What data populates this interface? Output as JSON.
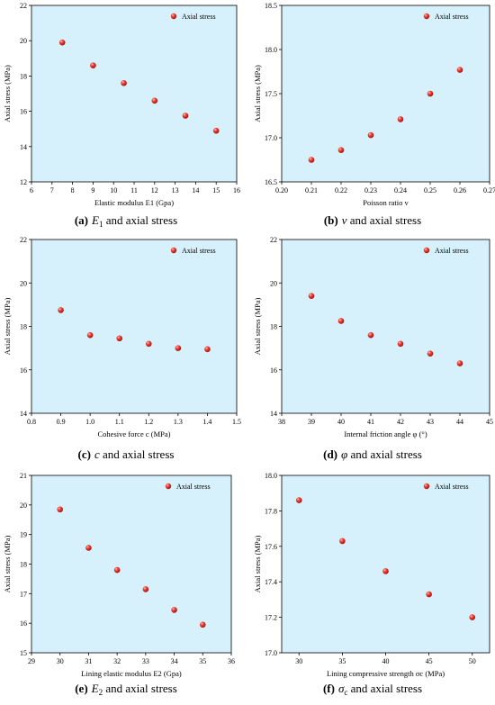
{
  "colors": {
    "plot_bg": "#d6f1fb",
    "marker": "#e8281e",
    "axis": "#000000"
  },
  "panels": [
    {
      "caption": {
        "letter": "(a)",
        "symbol": "E",
        "subscript": "1",
        "rest": " and axial stress"
      },
      "chart_data": {
        "type": "scatter",
        "xlabel": "Elastic modulus E1 (Gpa)",
        "ylabel": "Axial stress (MPa)",
        "xlim": [
          6,
          16
        ],
        "ylim": [
          12,
          22
        ],
        "xticks": [
          "6",
          "7",
          "8",
          "9",
          "10",
          "11",
          "12",
          "13",
          "14",
          "15",
          "16"
        ],
        "yticks": [
          "12",
          "14",
          "16",
          "18",
          "20",
          "22"
        ],
        "legend": "Axial stress",
        "legend_position": "top-right",
        "x": [
          7.5,
          9,
          10.5,
          12,
          13.5,
          15
        ],
        "y": [
          19.9,
          18.6,
          17.6,
          16.6,
          15.75,
          14.9
        ]
      }
    },
    {
      "caption": {
        "letter": "(b)",
        "symbol": "v",
        "subscript": "",
        "rest": " and axial stress"
      },
      "chart_data": {
        "type": "scatter",
        "xlabel": "Poisson ratio v",
        "ylabel": "Axial stress (MPa)",
        "xlim": [
          0.2,
          0.27
        ],
        "ylim": [
          16.5,
          18.5
        ],
        "xticks": [
          "0.20",
          "0.21",
          "0.22",
          "0.23",
          "0.24",
          "0.25",
          "0.26",
          "0.27"
        ],
        "yticks": [
          "16.5",
          "17.0",
          "17.5",
          "18.0",
          "18.5"
        ],
        "legend": "Axial stress",
        "legend_position": "top-right",
        "x": [
          0.21,
          0.22,
          0.23,
          0.24,
          0.25,
          0.26
        ],
        "y": [
          16.75,
          16.86,
          17.03,
          17.21,
          17.5,
          17.77
        ]
      }
    },
    {
      "caption": {
        "letter": "(c)",
        "symbol": "c",
        "subscript": "",
        "rest": " and axial stress"
      },
      "chart_data": {
        "type": "scatter",
        "xlabel": "Cohesive force c (MPa)",
        "ylabel": "Axial stress (MPa)",
        "xlim": [
          0.8,
          1.5
        ],
        "ylim": [
          14,
          22
        ],
        "xticks": [
          "0.8",
          "0.9",
          "1.0",
          "1.1",
          "1.2",
          "1.3",
          "1.4",
          "1.5"
        ],
        "yticks": [
          "14",
          "16",
          "18",
          "20",
          "22"
        ],
        "legend": "Axial stress",
        "legend_position": "top-right",
        "x": [
          0.9,
          1.0,
          1.1,
          1.2,
          1.3,
          1.4
        ],
        "y": [
          18.75,
          17.6,
          17.45,
          17.2,
          17.0,
          16.95
        ]
      }
    },
    {
      "caption": {
        "letter": "(d)",
        "symbol": "φ",
        "subscript": "",
        "rest": "  and axial stress"
      },
      "chart_data": {
        "type": "scatter",
        "xlabel": "Internal friction angle φ (°)",
        "ylabel": "Axial stress (MPa)",
        "xlim": [
          38,
          45
        ],
        "ylim": [
          14,
          22
        ],
        "xticks": [
          "38",
          "39",
          "40",
          "41",
          "42",
          "43",
          "44",
          "45"
        ],
        "yticks": [
          "14",
          "16",
          "18",
          "20",
          "22"
        ],
        "legend": "Axial stress",
        "legend_position": "top-right",
        "x": [
          39,
          40,
          41,
          42,
          43,
          44
        ],
        "y": [
          19.4,
          18.25,
          17.6,
          17.2,
          16.75,
          16.3
        ]
      }
    },
    {
      "caption": {
        "letter": "(e)",
        "symbol": "E",
        "subscript": "2",
        "rest": " and axial stress"
      },
      "chart_data": {
        "type": "scatter",
        "xlabel": "Lining elastic modulus E2 (Gpa)",
        "ylabel": "Axial stress (MPa)",
        "xlim": [
          29,
          36
        ],
        "ylim": [
          15,
          21
        ],
        "xticks": [
          "29",
          "30",
          "31",
          "32",
          "33",
          "34",
          "35",
          "36"
        ],
        "yticks": [
          "15",
          "16",
          "17",
          "18",
          "19",
          "20",
          "21"
        ],
        "legend": "Axial stress",
        "legend_position": "top-right",
        "x": [
          30,
          31,
          32,
          33,
          34,
          35
        ],
        "y": [
          19.85,
          18.55,
          17.8,
          17.15,
          16.45,
          15.95
        ]
      }
    },
    {
      "caption": {
        "letter": "(f)",
        "symbol": "σ",
        "subscript": "c",
        "rest": "  and axial stress"
      },
      "chart_data": {
        "type": "scatter",
        "xlabel": "Lining compressive strength σc (MPa)",
        "ylabel": "Axial stress (MPa)",
        "xlim": [
          28,
          52
        ],
        "ylim": [
          17.0,
          18.0
        ],
        "xticks": [
          "30",
          "35",
          "40",
          "45",
          "50"
        ],
        "yticks": [
          "17.0",
          "17.2",
          "17.4",
          "17.6",
          "17.8",
          "18.0"
        ],
        "legend": "Axial stress",
        "legend_position": "top-right",
        "x": [
          30,
          35,
          40,
          45,
          50
        ],
        "y": [
          17.86,
          17.63,
          17.46,
          17.33,
          17.2
        ]
      }
    }
  ]
}
